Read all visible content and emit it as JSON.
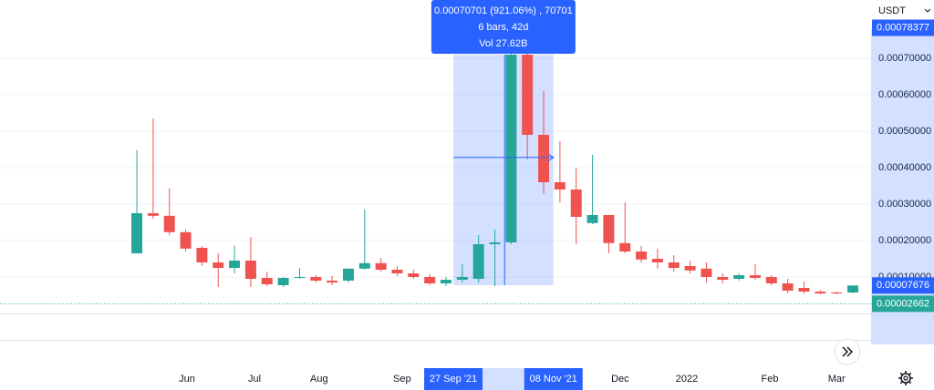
{
  "chart_data": {
    "type": "candlestick",
    "currency": "USDT",
    "up_color": "#26a69a",
    "down_color": "#ef5350",
    "open": [
      0.000165,
      0.000275,
      0.000268,
      0.000223,
      0.00018,
      0.00014,
      0.000125,
      0.000145,
      9.75e-05,
      7.75e-05,
      9.75e-05,
      0.0001,
      9e-05,
      9e-05,
      0.000123,
      0.000138,
      0.00012,
      0.00011,
      0.0001,
      8.25e-05,
      9.25e-05,
      9.5e-05,
      0.00019,
      0.000195,
      0.00071,
      0.00049,
      0.00036,
      0.00034,
      0.000248,
      0.00027,
      0.000193,
      0.00017,
      0.00015,
      0.00014,
      0.00013,
      0.000123,
      0.0001,
      9.5e-05,
      0.000105,
      0.0001,
      8.25e-05,
      7e-05,
      6e-05,
      5.75e-05,
      5.75e-05
    ],
    "high": [
      0.000448,
      0.000535,
      0.000343,
      0.00023,
      0.000185,
      0.000165,
      0.000185,
      0.00021,
      0.000115,
      0.0001,
      0.000125,
      0.000105,
      0.000103,
      0.000123,
      0.000285,
      0.000152,
      0.00013,
      0.00012,
      0.000108,
      0.0001,
      0.000135,
      0.000215,
      0.00023,
      0.00086,
      0.000722,
      0.00061,
      0.000473,
      0.000398,
      0.000435,
      0.00027,
      0.000305,
      0.000185,
      0.000178,
      0.00016,
      0.000145,
      0.00014,
      0.00011,
      0.00011,
      0.000135,
      0.000105,
      9.5e-05,
      8.75e-05,
      6.5e-05,
      6e-05,
      7.5e-05
    ],
    "low": [
      0.000165,
      0.00026,
      0.000215,
      0.00017,
      0.00013,
      7.25e-05,
      0.00011,
      7.25e-05,
      7.5e-05,
      7.25e-05,
      9.5e-05,
      8.5e-05,
      7.75e-05,
      8.5e-05,
      0.00012,
      0.000115,
      0.000103,
      9.5e-05,
      7.75e-05,
      7.5e-05,
      8.5e-05,
      8.5e-05,
      7.5e-05,
      0.00019,
      0.000423,
      0.000328,
      0.000305,
      0.00019,
      0.000245,
      0.000165,
      0.000165,
      0.00014,
      0.000123,
      0.000115,
      0.00011,
      8.5e-05,
      8.25e-05,
      9e-05,
      9.25e-05,
      7.75e-05,
      5.5e-05,
      5.5e-05,
      5.25e-05,
      5.25e-05,
      5.5e-05
    ],
    "close": [
      0.000275,
      0.000268,
      0.000223,
      0.000178,
      0.00014,
      0.000125,
      0.000145,
      9.5e-05,
      8e-05,
      9.75e-05,
      0.0001,
      9e-05,
      8.5e-05,
      0.000123,
      0.000138,
      0.00012,
      0.00011,
      0.0001,
      8.25e-05,
      9.25e-05,
      0.0001,
      0.00019,
      0.000195,
      0.00071,
      0.00049,
      0.00036,
      0.00034,
      0.000265,
      0.00027,
      0.000193,
      0.00017,
      0.000148,
      0.00014,
      0.000125,
      0.000118,
      0.0001,
      9.25e-05,
      0.000105,
      9.75e-05,
      8.25e-05,
      6.25e-05,
      6e-05,
      5.5e-05,
      5.5e-05,
      7.676e-05
    ],
    "xlim": [
      -8.41,
      45.12
    ],
    "xticks": [
      {
        "value": 3.08,
        "label": "Jun"
      },
      {
        "value": 7.23,
        "label": "Jul"
      },
      {
        "value": 11.2,
        "label": "Aug"
      },
      {
        "value": 16.3,
        "label": "Sep"
      },
      {
        "value": 29.7,
        "label": "Dec"
      },
      {
        "value": 33.8,
        "label": "2022"
      },
      {
        "value": 38.9,
        "label": "Feb"
      },
      {
        "value": 43,
        "label": "Mar"
      }
    ],
    "ylim": [
      0,
      0.00086
    ],
    "yticks": [
      {
        "value": 0.0001,
        "label": "0.00010000"
      },
      {
        "value": 0.0002,
        "label": "0.00020000"
      },
      {
        "value": 0.0003,
        "label": "0.00030000"
      },
      {
        "value": 0.0004,
        "label": "0.00040000"
      },
      {
        "value": 0.0005,
        "label": "0.00050000"
      },
      {
        "value": 0.0006,
        "label": "0.00060000"
      },
      {
        "value": 0.0007,
        "label": "0.00070000"
      }
    ],
    "price_labels": [
      0.00078377,
      7.676e-05,
      2.662e-05
    ],
    "price_label_colors": [
      "#2962ff",
      "#2962ff",
      "#26a69a"
    ],
    "selection": {
      "start": {
        "value": 19.45,
        "label": "27 Sep '21"
      },
      "end": {
        "value": 25.6,
        "label": "08 Nov '21"
      },
      "range": [
        7.75e-05,
        0.00071
      ],
      "tooltip": [
        "0.00070701 (921.06%) , 70701",
        "6 bars, 42d",
        "Vol 27.62B"
      ]
    },
    "crosshair": {
      "x": 22.6,
      "y": 0.000428
    }
  }
}
